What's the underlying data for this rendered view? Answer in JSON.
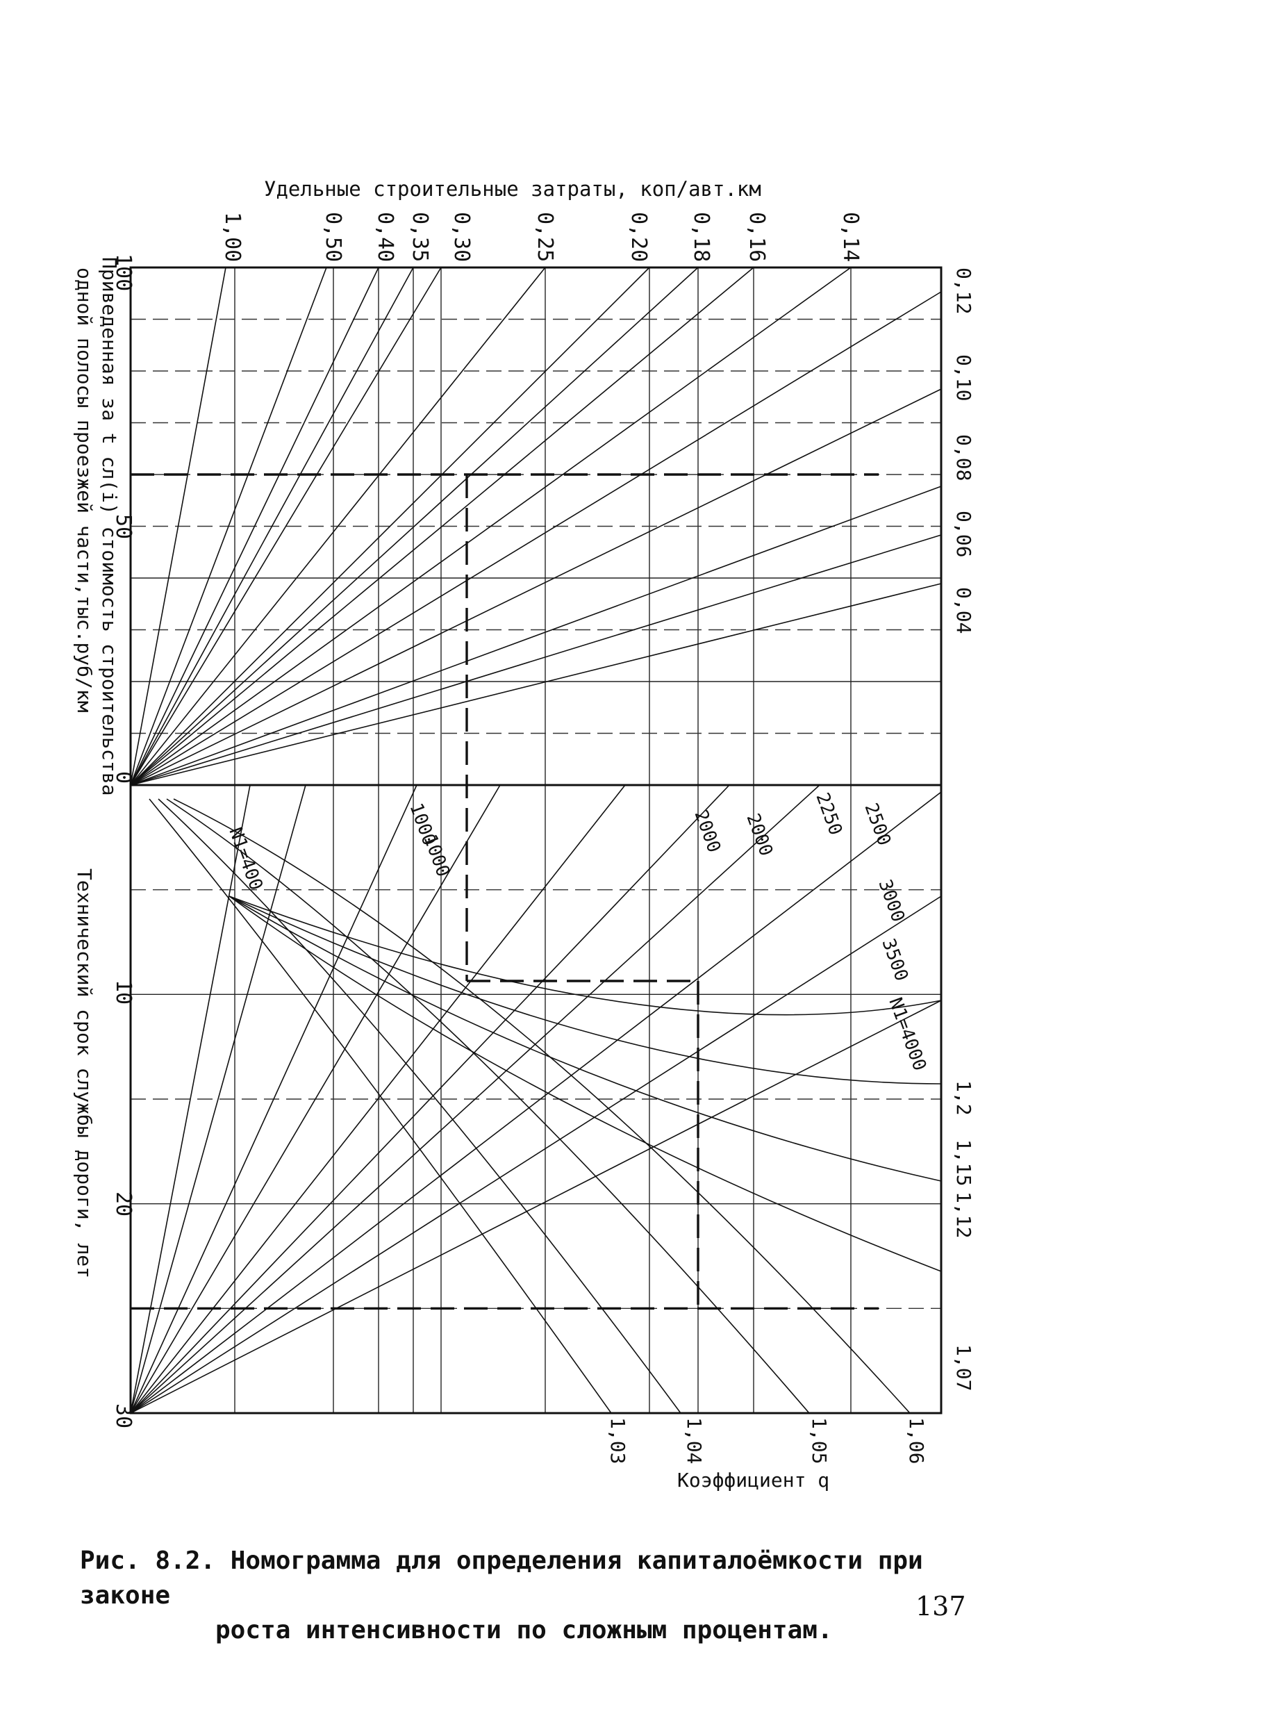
{
  "chart_data": {
    "type": "line",
    "title": "Удельные строительные затраты, коп/авт.км",
    "top_axis_ticks": [
      "1,00",
      "0,50",
      "0,40",
      "0,35",
      "0,30",
      "0,25",
      "0,20",
      "0,18",
      "0,16",
      "0,14"
    ],
    "right_axis_ticks": [
      "0,12",
      "0,10",
      "0,08",
      "0,06",
      "0,04"
    ],
    "left_axis_upper": {
      "label_line1": "Приведенная за t сл(i) стоимость строительства",
      "label_line2": "одной полосы проезжей части,тыс.руб/км",
      "ticks": [
        "100",
        "50",
        "0"
      ],
      "range": [
        0,
        100
      ]
    },
    "left_axis_lower": {
      "label": "Технический срок службы дороги, лет",
      "ticks": [
        "10",
        "20",
        "30"
      ],
      "range": [
        0,
        30
      ]
    },
    "n_labels": [
      "N1=400",
      "1000",
      "1000",
      "2000",
      "2000",
      "2250",
      "2500",
      "3000",
      "3500",
      "N1=4000"
    ],
    "right_lower_ticks": [
      "1,2",
      "1,15",
      "1,12",
      "1,07"
    ],
    "bottom_ticks": [
      "1,03",
      "1,04",
      "1,05",
      "1,06"
    ],
    "bottom_label": "Коэффициент  q",
    "specific_costs_upper": [
      1.0,
      0.5,
      0.4,
      0.35,
      0.3,
      0.25,
      0.2,
      0.18,
      0.16,
      0.14,
      0.12,
      0.1,
      0.08,
      0.06,
      0.04
    ],
    "example_path": {
      "cost": 60,
      "specific_cost": 0.3,
      "service_life": 25
    }
  },
  "caption": {
    "line1": "Рис. 8.2. Номограмма для определения капиталоёмкости при законе",
    "line2": "роста интенсивности по сложным процентам."
  },
  "page_number": "137"
}
